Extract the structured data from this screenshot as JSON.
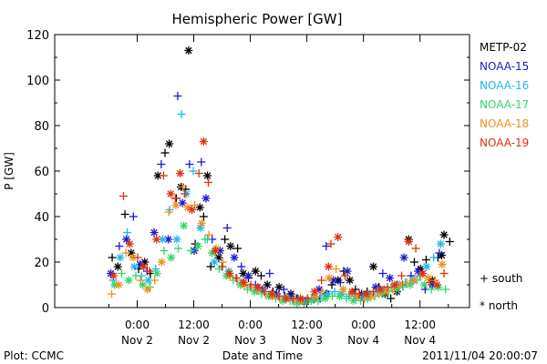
{
  "chart_data": {
    "type": "scatter",
    "title": "Hemispheric Power [GW]",
    "ylabel": "P [GW]",
    "xlabel": "Date and Time",
    "ylim": [
      0,
      120
    ],
    "yticks": [
      0,
      20,
      40,
      60,
      80,
      100,
      120
    ],
    "xlim_hours": [
      -17.5,
      70.5
    ],
    "xticks": [
      {
        "h": 0,
        "time": "0:00",
        "date": "Nov 2"
      },
      {
        "h": 12,
        "time": "12:00",
        "date": "Nov 2"
      },
      {
        "h": 24,
        "time": "0:00",
        "date": "Nov 3"
      },
      {
        "h": 36,
        "time": "12:00",
        "date": "Nov 3"
      },
      {
        "h": 48,
        "time": "0:00",
        "date": "Nov 4"
      },
      {
        "h": 60,
        "time": "12:00",
        "date": "Nov 4"
      }
    ],
    "legend_position": "right",
    "series": [
      {
        "name": "METP-02",
        "color": "#000000",
        "points": [
          [
            -5.3,
            22
          ],
          [
            -4.1,
            18
          ],
          [
            -2.6,
            41
          ],
          [
            -1.3,
            24
          ],
          [
            0.3,
            17
          ],
          [
            1.6,
            20
          ],
          [
            2.8,
            15
          ],
          [
            4.4,
            58
          ],
          [
            5.9,
            68
          ],
          [
            6.8,
            72
          ],
          [
            8.3,
            48
          ],
          [
            9.3,
            53
          ],
          [
            10.3,
            52
          ],
          [
            10.9,
            113
          ],
          [
            12.3,
            28
          ],
          [
            13.3,
            44
          ],
          [
            14.1,
            40
          ],
          [
            14.9,
            58
          ],
          [
            15.6,
            18
          ],
          [
            17.3,
            22
          ],
          [
            18.6,
            30
          ],
          [
            19.8,
            27
          ],
          [
            21.3,
            26
          ],
          [
            22.5,
            15
          ],
          [
            23.6,
            13
          ],
          [
            25.1,
            16
          ],
          [
            26.3,
            14
          ],
          [
            27.6,
            10
          ],
          [
            28.8,
            7
          ],
          [
            30.1,
            9
          ],
          [
            31.3,
            5
          ],
          [
            32.6,
            6
          ],
          [
            33.8,
            4
          ],
          [
            35.1,
            3
          ],
          [
            36.3,
            3
          ],
          [
            37.6,
            4
          ],
          [
            38.8,
            4
          ],
          [
            40.1,
            6
          ],
          [
            41.3,
            10
          ],
          [
            42.6,
            12
          ],
          [
            43.8,
            16
          ],
          [
            45.1,
            12
          ],
          [
            46.3,
            8
          ],
          [
            47.6,
            6
          ],
          [
            48.8,
            7
          ],
          [
            50.1,
            18
          ],
          [
            51.3,
            9
          ],
          [
            52.6,
            6
          ],
          [
            53.8,
            4
          ],
          [
            55.1,
            7
          ],
          [
            56.3,
            10
          ],
          [
            57.6,
            30
          ],
          [
            58.8,
            20
          ],
          [
            60.1,
            17
          ],
          [
            61.3,
            21
          ],
          [
            62.6,
            12
          ],
          [
            63.8,
            22
          ],
          [
            65.1,
            32
          ],
          [
            66.3,
            29
          ],
          [
            64.6,
            23
          ]
        ]
      },
      {
        "name": "NOAA-15",
        "color": "#1a1ad0",
        "points": [
          [
            -5.6,
            15
          ],
          [
            -3.8,
            27
          ],
          [
            -2.3,
            30
          ],
          [
            -0.8,
            40
          ],
          [
            0.6,
            19
          ],
          [
            2.1,
            16
          ],
          [
            3.6,
            33
          ],
          [
            5.1,
            63
          ],
          [
            6.6,
            30
          ],
          [
            8.6,
            93
          ],
          [
            9.6,
            46
          ],
          [
            11.1,
            63
          ],
          [
            12.1,
            25
          ],
          [
            13.6,
            64
          ],
          [
            14.6,
            48
          ],
          [
            15.9,
            30
          ],
          [
            17.6,
            25
          ],
          [
            19.1,
            35
          ],
          [
            20.6,
            22
          ],
          [
            22.1,
            18
          ],
          [
            23.6,
            14
          ],
          [
            25.1,
            10
          ],
          [
            26.6,
            8
          ],
          [
            28.1,
            15
          ],
          [
            29.6,
            6
          ],
          [
            31.1,
            8
          ],
          [
            32.6,
            5
          ],
          [
            34.1,
            4
          ],
          [
            35.6,
            3
          ],
          [
            37.1,
            4
          ],
          [
            38.6,
            8
          ],
          [
            40.1,
            27
          ],
          [
            41.6,
            12
          ],
          [
            43.1,
            11
          ],
          [
            44.6,
            16
          ],
          [
            46.1,
            6
          ],
          [
            47.6,
            5
          ],
          [
            49.1,
            5
          ],
          [
            50.6,
            9
          ],
          [
            52.1,
            15
          ],
          [
            53.6,
            13
          ],
          [
            55.1,
            10
          ],
          [
            56.6,
            22
          ],
          [
            58.1,
            14
          ],
          [
            59.6,
            16
          ],
          [
            61.1,
            8
          ],
          [
            62.6,
            10
          ],
          [
            64.1,
            24
          ]
        ]
      },
      {
        "name": "NOAA-16",
        "color": "#20b8e8",
        "points": [
          [
            -5.1,
            12
          ],
          [
            -3.6,
            22
          ],
          [
            -2.1,
            33
          ],
          [
            -0.6,
            18
          ],
          [
            0.9,
            14
          ],
          [
            2.4,
            12
          ],
          [
            3.9,
            17
          ],
          [
            5.4,
            30
          ],
          [
            6.9,
            43
          ],
          [
            8.4,
            30
          ],
          [
            9.4,
            85
          ],
          [
            10.4,
            50
          ],
          [
            11.9,
            60
          ],
          [
            13.4,
            35
          ],
          [
            14.9,
            30
          ],
          [
            16.4,
            20
          ],
          [
            17.9,
            18
          ],
          [
            19.4,
            16
          ],
          [
            20.9,
            13
          ],
          [
            22.4,
            11
          ],
          [
            23.9,
            9
          ],
          [
            25.4,
            8
          ],
          [
            26.9,
            7
          ],
          [
            28.4,
            6
          ],
          [
            29.9,
            5
          ],
          [
            31.4,
            4
          ],
          [
            32.9,
            3
          ],
          [
            34.4,
            3
          ],
          [
            35.9,
            3
          ],
          [
            37.4,
            4
          ],
          [
            38.9,
            5
          ],
          [
            40.4,
            6
          ],
          [
            41.9,
            7
          ],
          [
            43.4,
            6
          ],
          [
            44.9,
            5
          ],
          [
            46.4,
            5
          ],
          [
            47.9,
            5
          ],
          [
            49.4,
            6
          ],
          [
            50.9,
            7
          ],
          [
            52.4,
            8
          ],
          [
            53.9,
            9
          ],
          [
            55.4,
            10
          ],
          [
            56.9,
            11
          ],
          [
            58.4,
            12
          ],
          [
            59.9,
            14
          ],
          [
            61.4,
            18
          ],
          [
            62.9,
            22
          ],
          [
            64.4,
            28
          ]
        ]
      },
      {
        "name": "NOAA-17",
        "color": "#30d868",
        "points": [
          [
            -4.8,
            10
          ],
          [
            -3.3,
            15
          ],
          [
            -1.8,
            12
          ],
          [
            -0.3,
            14
          ],
          [
            1.2,
            10
          ],
          [
            2.7,
            9
          ],
          [
            4.2,
            15
          ],
          [
            5.7,
            25
          ],
          [
            7.2,
            22
          ],
          [
            8.7,
            26
          ],
          [
            9.9,
            36
          ],
          [
            11.4,
            25
          ],
          [
            12.9,
            27
          ],
          [
            14.4,
            30
          ],
          [
            15.9,
            24
          ],
          [
            17.4,
            17
          ],
          [
            18.9,
            14
          ],
          [
            20.4,
            12
          ],
          [
            21.9,
            10
          ],
          [
            23.4,
            8
          ],
          [
            24.9,
            7
          ],
          [
            26.4,
            6
          ],
          [
            27.9,
            5
          ],
          [
            29.4,
            4
          ],
          [
            30.9,
            3
          ],
          [
            32.4,
            3
          ],
          [
            33.9,
            2
          ],
          [
            35.4,
            2
          ],
          [
            36.9,
            3
          ],
          [
            38.4,
            3
          ],
          [
            39.9,
            4
          ],
          [
            41.4,
            5
          ],
          [
            42.9,
            5
          ],
          [
            44.4,
            4
          ],
          [
            45.9,
            3
          ],
          [
            47.4,
            3
          ],
          [
            48.9,
            4
          ],
          [
            50.4,
            5
          ],
          [
            51.9,
            6
          ],
          [
            53.4,
            7
          ],
          [
            54.9,
            8
          ],
          [
            56.4,
            9
          ],
          [
            57.9,
            10
          ],
          [
            59.4,
            12
          ],
          [
            60.9,
            10
          ],
          [
            62.4,
            8
          ],
          [
            63.9,
            9
          ],
          [
            65.4,
            8
          ]
        ]
      },
      {
        "name": "NOAA-18",
        "color": "#f09020",
        "points": [
          [
            -5.4,
            6
          ],
          [
            -3.9,
            10
          ],
          [
            -2.4,
            24
          ],
          [
            -0.9,
            22
          ],
          [
            0.7,
            12
          ],
          [
            2.2,
            8
          ],
          [
            3.7,
            12
          ],
          [
            5.2,
            20
          ],
          [
            6.7,
            42
          ],
          [
            8.2,
            45
          ],
          [
            9.7,
            53
          ],
          [
            10.7,
            44
          ],
          [
            12.2,
            45
          ],
          [
            13.7,
            37
          ],
          [
            15.2,
            32
          ],
          [
            16.7,
            26
          ],
          [
            18.2,
            20
          ],
          [
            19.7,
            14
          ],
          [
            21.2,
            12
          ],
          [
            22.7,
            10
          ],
          [
            24.2,
            9
          ],
          [
            25.7,
            8
          ],
          [
            27.2,
            6
          ],
          [
            28.7,
            5
          ],
          [
            30.2,
            4
          ],
          [
            31.7,
            4
          ],
          [
            33.2,
            3
          ],
          [
            34.7,
            3
          ],
          [
            36.2,
            4
          ],
          [
            37.7,
            5
          ],
          [
            39.2,
            7
          ],
          [
            40.7,
            13
          ],
          [
            42.2,
            17
          ],
          [
            43.7,
            8
          ],
          [
            45.2,
            6
          ],
          [
            46.7,
            5
          ],
          [
            48.2,
            4
          ],
          [
            49.7,
            5
          ],
          [
            51.2,
            6
          ],
          [
            52.7,
            7
          ],
          [
            54.2,
            8
          ],
          [
            55.7,
            10
          ],
          [
            57.2,
            11
          ],
          [
            58.7,
            12
          ],
          [
            60.2,
            14
          ],
          [
            61.7,
            13
          ],
          [
            63.2,
            12
          ],
          [
            64.7,
            19
          ]
        ]
      },
      {
        "name": "NOAA-19",
        "color": "#e03010",
        "points": [
          [
            -5.0,
            14
          ],
          [
            -2.9,
            49
          ],
          [
            -1.6,
            28
          ],
          [
            0.1,
            22
          ],
          [
            1.4,
            18
          ],
          [
            2.6,
            16
          ],
          [
            4.1,
            30
          ],
          [
            5.6,
            58
          ],
          [
            7.1,
            50
          ],
          [
            8.1,
            48
          ],
          [
            9.1,
            59
          ],
          [
            10.1,
            50
          ],
          [
            11.6,
            43
          ],
          [
            13.1,
            59
          ],
          [
            14.1,
            73
          ],
          [
            15.1,
            55
          ],
          [
            16.6,
            25
          ],
          [
            18.1,
            18
          ],
          [
            19.6,
            15
          ],
          [
            21.1,
            13
          ],
          [
            22.6,
            11
          ],
          [
            24.1,
            10
          ],
          [
            25.6,
            9
          ],
          [
            27.1,
            7
          ],
          [
            28.6,
            6
          ],
          [
            30.1,
            5
          ],
          [
            31.6,
            4
          ],
          [
            33.1,
            4
          ],
          [
            34.6,
            4
          ],
          [
            36.1,
            4
          ],
          [
            37.6,
            7
          ],
          [
            39.1,
            12
          ],
          [
            40.6,
            18
          ],
          [
            41.1,
            28
          ],
          [
            42.6,
            31
          ],
          [
            44.1,
            14
          ],
          [
            45.6,
            7
          ],
          [
            47.1,
            6
          ],
          [
            48.6,
            6
          ],
          [
            50.1,
            7
          ],
          [
            51.6,
            8
          ],
          [
            53.1,
            9
          ],
          [
            54.6,
            10
          ],
          [
            56.1,
            14
          ],
          [
            57.6,
            29
          ],
          [
            59.1,
            26
          ],
          [
            60.6,
            15
          ],
          [
            62.1,
            11
          ],
          [
            63.6,
            10
          ],
          [
            65.1,
            15
          ]
        ]
      }
    ],
    "marker_legend": [
      {
        "symbol": "+",
        "label": "south"
      },
      {
        "symbol": "*",
        "label": "north"
      }
    ],
    "footer_left": "Plot: CCMC",
    "footer_right": "2011/11/04 20:00:07"
  }
}
